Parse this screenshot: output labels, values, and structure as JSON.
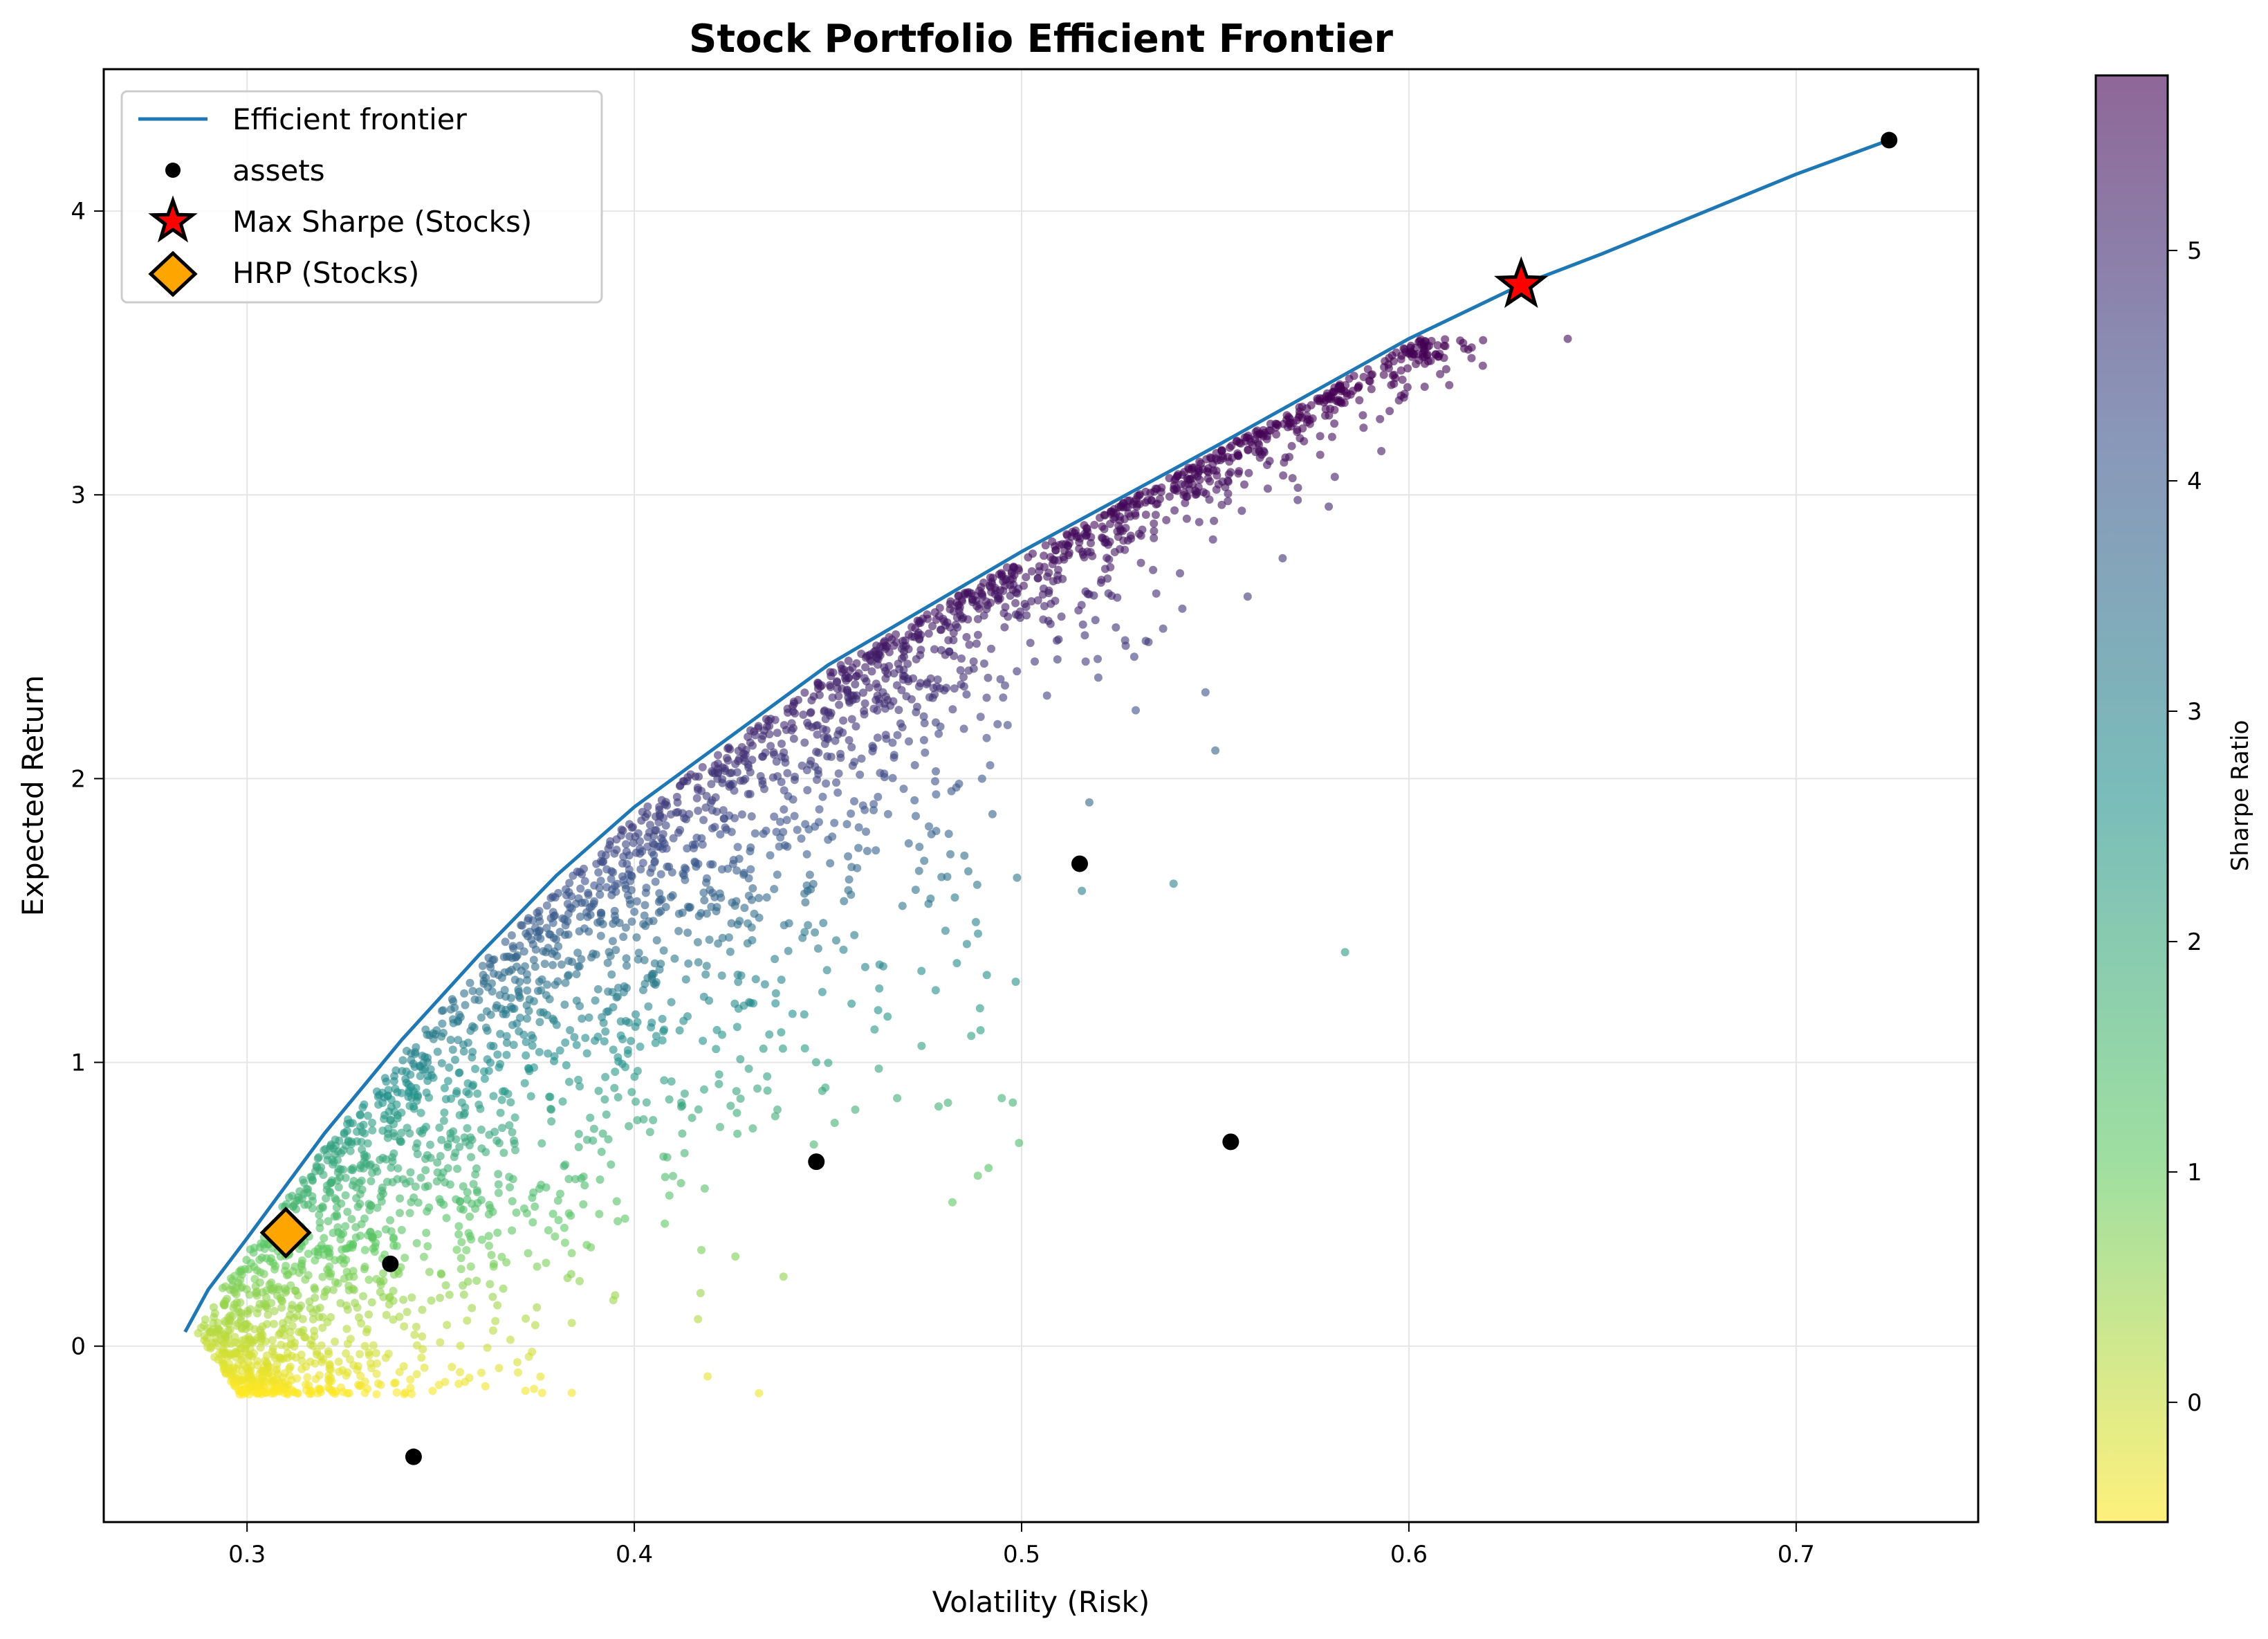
{
  "chart_data": {
    "type": "scatter",
    "title": "Stock Portfolio Efficient Frontier",
    "xlabel": "Volatility (Risk)",
    "ylabel": "Expected Return",
    "xlim": [
      0.263,
      0.747
    ],
    "ylim": [
      -0.62,
      4.5
    ],
    "xticks": [
      "0.3",
      "0.4",
      "0.5",
      "0.6",
      "0.7"
    ],
    "yticks": [
      "0",
      "1",
      "2",
      "3",
      "4"
    ],
    "grid": true,
    "legend_position": "top-left",
    "legend": [
      "Efficient frontier",
      "assets",
      "Max Sharpe (Stocks)",
      "HRP (Stocks)"
    ],
    "frontier": {
      "name": "Efficient frontier",
      "color": "#1f77b4",
      "x": [
        0.284,
        0.29,
        0.3,
        0.32,
        0.34,
        0.36,
        0.38,
        0.4,
        0.45,
        0.5,
        0.55,
        0.6,
        0.629,
        0.65,
        0.7,
        0.724
      ],
      "y": [
        0.05,
        0.2,
        0.38,
        0.75,
        1.08,
        1.38,
        1.66,
        1.9,
        2.4,
        2.8,
        3.17,
        3.55,
        3.74,
        3.85,
        4.13,
        4.25
      ]
    },
    "assets": {
      "name": "assets",
      "color": "#000000",
      "x": [
        0.724,
        0.515,
        0.554,
        0.447,
        0.337,
        0.343
      ],
      "y": [
        4.25,
        1.7,
        0.72,
        0.65,
        0.29,
        -0.39
      ]
    },
    "max_sharpe": {
      "name": "Max Sharpe (Stocks)",
      "x": 0.629,
      "y": 3.74,
      "color": "#ff0000"
    },
    "hrp": {
      "name": "HRP (Stocks)",
      "x": 0.31,
      "y": 0.4,
      "color": "#ffa500"
    },
    "random_portfolios": {
      "color_by": "Sharpe Ratio",
      "colormap": "viridis_r",
      "alpha": 0.6
    },
    "colorbar": {
      "label": "Sharpe Ratio",
      "range": [
        -0.52,
        5.76
      ],
      "ticks": [
        "0",
        "1",
        "2",
        "3",
        "4",
        "5"
      ]
    }
  }
}
